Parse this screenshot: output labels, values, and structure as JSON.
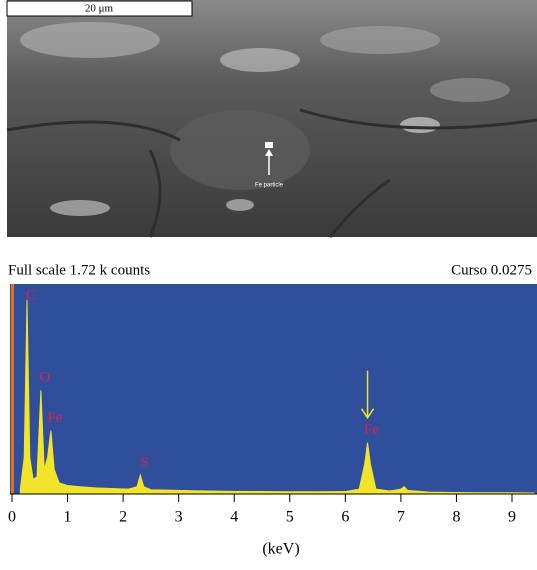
{
  "image": {
    "scale_bar": "20 μm",
    "label": "Fe particle"
  },
  "chart_data": {
    "type": "area",
    "subtitle_left": "Full scale 1.72 k counts",
    "subtitle_right": "Curso 0.0275",
    "xlabel": "(keV)",
    "color": "#f2e42a",
    "background": "#2f4e9c",
    "x": [
      0.15,
      0.22,
      0.27,
      0.32,
      0.38,
      0.45,
      0.52,
      0.58,
      0.64,
      0.7,
      0.76,
      0.85,
      1.0,
      1.2,
      1.5,
      1.8,
      2.1,
      2.25,
      2.31,
      2.37,
      2.5,
      3.0,
      3.5,
      4.0,
      4.5,
      5.0,
      5.5,
      6.0,
      6.25,
      6.35,
      6.4,
      6.45,
      6.55,
      6.8,
      7.0,
      7.06,
      7.12,
      7.5,
      8.0,
      8.5,
      9.0,
      9.4
    ],
    "values": [
      40,
      300,
      1590,
      300,
      120,
      140,
      850,
      200,
      300,
      520,
      200,
      90,
      70,
      60,
      50,
      45,
      40,
      60,
      155,
      60,
      35,
      30,
      25,
      22,
      20,
      18,
      18,
      20,
      40,
      250,
      420,
      250,
      40,
      25,
      40,
      60,
      30,
      15,
      12,
      10,
      10,
      8
    ],
    "annotations": [
      {
        "text": "C",
        "x": 0.27
      },
      {
        "text": "O",
        "x": 0.52
      },
      {
        "text": "Fe",
        "x": 0.7
      },
      {
        "text": "S",
        "x": 2.31
      },
      {
        "text": "Fe",
        "x": 6.4,
        "arrow": true
      }
    ],
    "xlim": [
      0,
      9.45
    ],
    "ylim": [
      0,
      1720
    ],
    "xticks": [
      0,
      1,
      2,
      3,
      4,
      5,
      6,
      7,
      8,
      9
    ]
  }
}
